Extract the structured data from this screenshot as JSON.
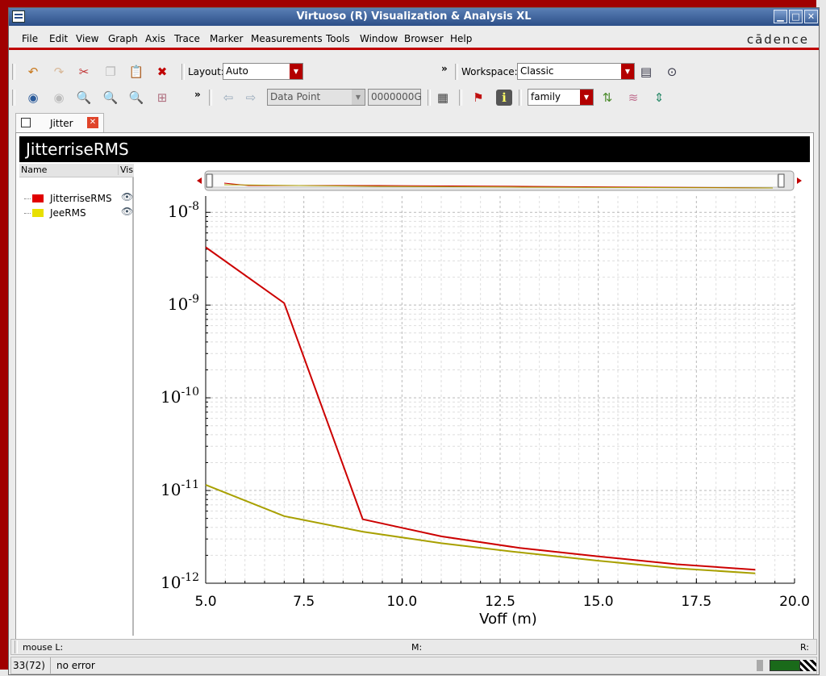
{
  "window": {
    "title": "Virtuoso (R) Visualization & Analysis XL",
    "minimize": "▁",
    "maximize": "□",
    "close": "✕"
  },
  "menu": {
    "items": [
      "File",
      "Edit",
      "View",
      "Graph",
      "Axis",
      "Trace",
      "Marker",
      "Measurements",
      "Tools",
      "Window",
      "Browser",
      "Help"
    ],
    "brand": "cādence"
  },
  "toolbar1": {
    "layout_label": "Layout:",
    "layout_value": "Auto",
    "overflow": "»",
    "workspace_label": "Workspace:",
    "workspace_value": "Classic"
  },
  "toolbar2": {
    "overflow": "»",
    "marker_mode": "Data Point",
    "marker_value": "0000000G",
    "plot_style": "family"
  },
  "tab": {
    "label": "Jitter",
    "close": "✕"
  },
  "graph": {
    "header": "JitterriseRMS",
    "columns": {
      "name": "Name",
      "visible": "Vis"
    },
    "legend": [
      {
        "label": "JitterriseRMS",
        "color": "#d40000"
      },
      {
        "label": "JeeRMS",
        "color": "#dddd00"
      }
    ]
  },
  "chart_data": {
    "type": "line",
    "title": "",
    "xlabel": "Voff (m)",
    "ylabel": "",
    "xlim": [
      5.0,
      20.0
    ],
    "ylim": [
      1e-12,
      1.5e-08
    ],
    "yscale": "log",
    "grid": true,
    "x_ticks": [
      "5.0",
      "7.5",
      "10.0",
      "12.5",
      "15.0",
      "17.5",
      "20.0"
    ],
    "y_ticks": [
      {
        "base": "10",
        "exp": "-8"
      },
      {
        "base": "10",
        "exp": "-9"
      },
      {
        "base": "10",
        "exp": "-10"
      },
      {
        "base": "10",
        "exp": "-11"
      },
      {
        "base": "10",
        "exp": "-12"
      }
    ],
    "series": [
      {
        "name": "JitterriseRMS",
        "color": "#cc0000",
        "x": [
          5,
          7,
          9,
          11,
          13,
          15,
          17,
          19
        ],
        "y": [
          4.2e-09,
          1.05e-09,
          4.9e-12,
          3.2e-12,
          2.4e-12,
          1.95e-12,
          1.6e-12,
          1.4e-12
        ]
      },
      {
        "name": "JeeRMS",
        "color": "#a8a000",
        "x": [
          5,
          7,
          9,
          11,
          13,
          15,
          17,
          19
        ],
        "y": [
          1.15e-11,
          5.3e-12,
          3.6e-12,
          2.7e-12,
          2.15e-12,
          1.75e-12,
          1.45e-12,
          1.28e-12
        ]
      }
    ]
  },
  "status": {
    "mouse_l": "mouse L:",
    "mouse_m": "M:",
    "mouse_r": "R:",
    "count": "33(72)",
    "message": "no error"
  }
}
